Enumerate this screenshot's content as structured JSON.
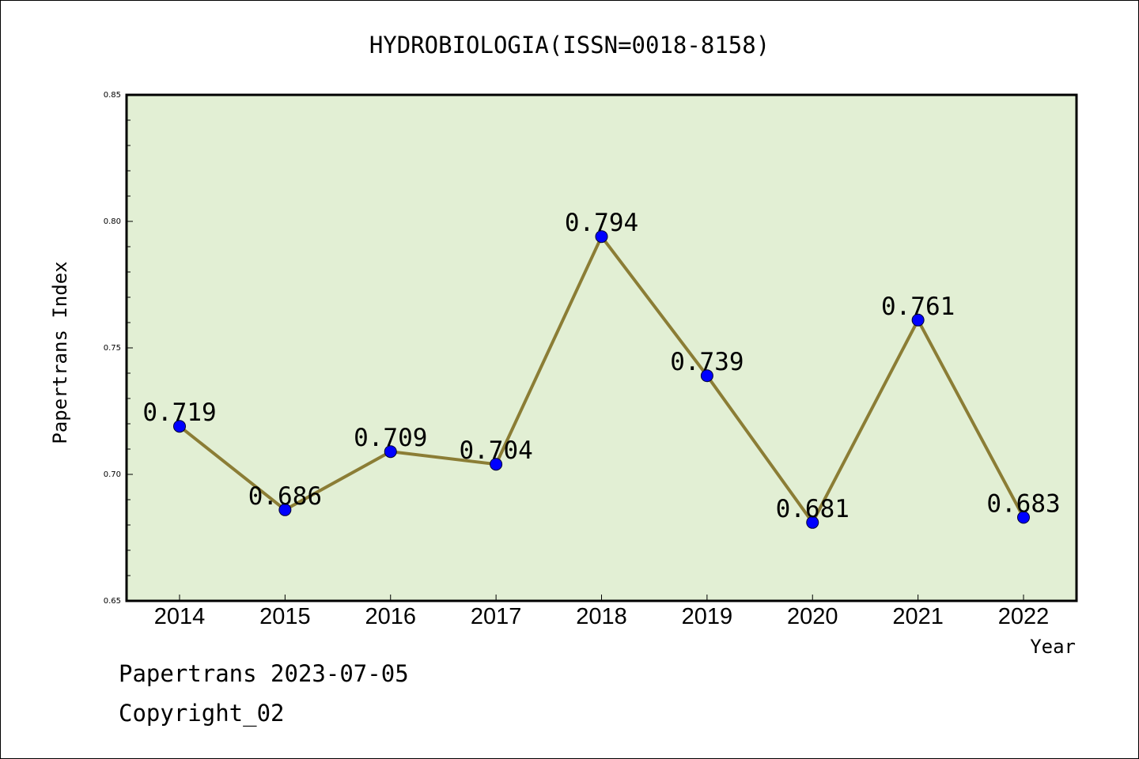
{
  "chart_data": {
    "type": "line",
    "title": "HYDROBIOLOGIA(ISSN=0018-8158)",
    "xlabel": "Year",
    "ylabel": "Papertrans Index",
    "categories": [
      "2014",
      "2015",
      "2016",
      "2017",
      "2018",
      "2019",
      "2020",
      "2021",
      "2022"
    ],
    "series": [
      {
        "values": [
          0.719,
          0.686,
          0.709,
          0.704,
          0.794,
          0.739,
          0.681,
          0.761,
          0.683
        ],
        "labels": [
          "0.719",
          "0.686",
          "0.709",
          "0.704",
          "0.794",
          "0.739",
          "0.681",
          "0.761",
          "0.683"
        ]
      }
    ],
    "ylim": [
      0.65,
      0.85
    ],
    "yticks": [
      "0.65",
      "0.70",
      "0.75",
      "0.80",
      "0.85"
    ],
    "grid": false,
    "colors": {
      "plot_background": "#e2efd4",
      "line": "#8b7d35",
      "marker": "#0000ff"
    }
  },
  "footer": {
    "line1": "Papertrans 2023-07-05",
    "line2": "Copyright_02"
  }
}
